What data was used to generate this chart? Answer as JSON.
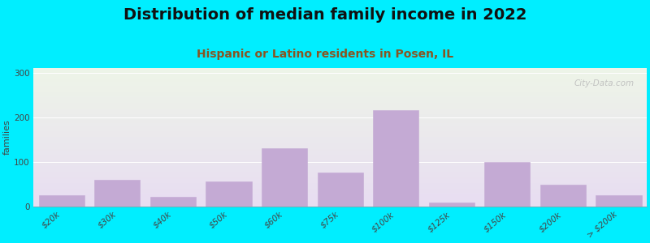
{
  "title": "Distribution of median family income in 2022",
  "subtitle": "Hispanic or Latino residents in Posen, IL",
  "ylabel": "families",
  "background_outer": "#00eeff",
  "background_inner_top": "#eef5e8",
  "background_inner_bottom": "#e8ddf2",
  "bar_color": "#c4aad4",
  "bar_edge_color": "#c4aad4",
  "categories": [
    "$20k",
    "$30k",
    "$40k",
    "$50k",
    "$60k",
    "$75k",
    "$100k",
    "$125k",
    "$150k",
    "$200k",
    "> $200k"
  ],
  "values": [
    25,
    60,
    22,
    55,
    130,
    75,
    215,
    8,
    100,
    48,
    25
  ],
  "ylim": [
    0,
    310
  ],
  "yticks": [
    0,
    100,
    200,
    300
  ],
  "title_fontsize": 14,
  "subtitle_fontsize": 10,
  "subtitle_color": "#996633",
  "ylabel_fontsize": 8,
  "tick_fontsize": 7.5,
  "watermark": "City-Data.com"
}
